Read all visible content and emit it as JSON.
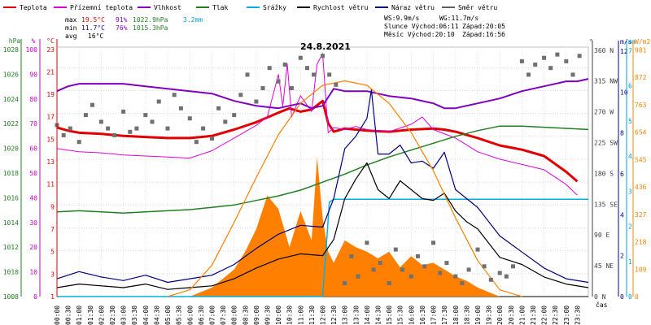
{
  "chart_data": {
    "type": "line",
    "title": "24.8.2021",
    "x_unit_label": "čas",
    "legend": [
      {
        "name": "Teplota",
        "color": "#e00000"
      },
      {
        "name": "Přízemní teplota",
        "color": "#e000e0"
      },
      {
        "name": "Vlhkost",
        "color": "#8000c0"
      },
      {
        "name": "Tlak",
        "color": "#208020"
      },
      {
        "name": "Srážky",
        "color": "#00b0e0"
      },
      {
        "name": "Rychlost větru",
        "color": "#000000"
      },
      {
        "name": "Náraz větru",
        "color": "#000080"
      },
      {
        "name": "Směr větru",
        "color": "#606060"
      }
    ],
    "stats": {
      "max_label": "max",
      "max_temp": "19.5°C",
      "max_hum": "91%",
      "max_press": "1022.9hPa",
      "rain": "3.2mm",
      "min_label": "min",
      "min_temp": "11.7°C",
      "min_hum": "76%",
      "min_press": "1015.3hPa",
      "avg_label": "avg",
      "avg_temp": "16°C"
    },
    "wind_info": {
      "ws": "WS:9.9m/s",
      "wg": "WG:11.7m/s"
    },
    "sun": {
      "rise": "Slunce Východ:06:11",
      "set": "Západ:20:05"
    },
    "moon": {
      "rise": "Měsíc Východ:20:10",
      "set": "Západ:16:56"
    },
    "axes_left": [
      {
        "unit": "hPa",
        "color": "#208020",
        "ticks": [
          "1008",
          "1010",
          "1012",
          "1014",
          "1016",
          "1018",
          "1020",
          "1022",
          "1024",
          "1026",
          "1028"
        ]
      },
      {
        "unit": "%",
        "color": "#c000c0",
        "ticks": [
          "0",
          "10",
          "20",
          "30",
          "40",
          "50",
          "60",
          "70",
          "80",
          "90",
          "100"
        ]
      },
      {
        "unit": "°C",
        "color": "#e00000",
        "ticks": [
          "1",
          "3",
          "5",
          "7",
          "9",
          "11",
          "13",
          "15",
          "17",
          "19",
          "21",
          "23"
        ]
      }
    ],
    "axes_right": [
      {
        "unit": "°",
        "color": "#404040",
        "ticks": [
          "0 N",
          "45 NE",
          "90 E",
          "135 SE",
          "180 S",
          "225 SW",
          "270 W",
          "315 NW",
          "360 N"
        ]
      },
      {
        "unit": "m/s",
        "color": "#000080",
        "ticks": [
          "0",
          "2",
          "4",
          "6",
          "8",
          "10",
          "12"
        ]
      },
      {
        "unit": "mm",
        "color": "#00a0d0",
        "ticks": [
          "0",
          "1",
          "2",
          "3",
          "4",
          "5",
          "6",
          "7"
        ]
      },
      {
        "unit": "W/m2",
        "color": "#ff8000",
        "ticks": [
          "0",
          "109",
          "218",
          "327",
          "436",
          "545",
          "654",
          "763",
          "872",
          "981"
        ]
      }
    ],
    "x_ticks": [
      "00:00",
      "00:30",
      "01:00",
      "01:30",
      "02:00",
      "02:30",
      "03:00",
      "03:30",
      "04:00",
      "04:30",
      "05:00",
      "05:30",
      "06:00",
      "06:30",
      "07:00",
      "07:30",
      "08:00",
      "08:30",
      "09:00",
      "09:30",
      "10:00",
      "10:30",
      "11:00",
      "11:30",
      "12:00",
      "12:30",
      "13:00",
      "13:30",
      "14:00",
      "14:30",
      "15:00",
      "15:30",
      "16:00",
      "16:30",
      "17:00",
      "17:30",
      "18:00",
      "18:30",
      "19:00",
      "19:30",
      "20:00",
      "20:30",
      "21:00",
      "21:30",
      "22:00",
      "22:30",
      "23:00",
      "23:30"
    ],
    "series": [
      {
        "name": "Teplota",
        "color": "#e00000",
        "unit": "°C",
        "x": [
          0,
          0.5,
          1,
          2,
          3,
          4,
          5,
          6,
          7,
          8,
          9,
          10,
          10.5,
          11,
          11.5,
          12,
          12.25,
          12.5,
          13,
          14,
          15,
          16,
          17,
          17.5,
          18,
          19,
          20,
          21,
          22,
          23,
          23.5
        ],
        "values": [
          17,
          16.7,
          16.5,
          16.4,
          16.2,
          16.1,
          16.0,
          16.0,
          16.2,
          16.8,
          17.5,
          18.4,
          18.8,
          18.5,
          18.7,
          19.5,
          17.4,
          16.6,
          16.9,
          16.7,
          16.6,
          16.8,
          16.9,
          16.8,
          16.6,
          16.0,
          15.3,
          14.9,
          14.3,
          12.8,
          11.9
        ]
      },
      {
        "name": "Přízemní teplota",
        "color": "#e000e0",
        "unit": "°C",
        "x": [
          0,
          1,
          2,
          3,
          4,
          5,
          6,
          7,
          8,
          9,
          9.5,
          10,
          10.2,
          10.4,
          10.6,
          11,
          11.5,
          11.75,
          12,
          12.25,
          12.5,
          13,
          13.5,
          14,
          15,
          16,
          16.5,
          17,
          18,
          19,
          20,
          21,
          22,
          23,
          23.5
        ],
        "values": [
          15,
          14.7,
          14.6,
          14.4,
          14.3,
          14.2,
          14.1,
          14.8,
          16,
          17.2,
          18,
          22,
          19,
          23,
          18,
          20,
          18.5,
          23,
          24,
          16.5,
          17,
          16.8,
          17.1,
          16.8,
          16.6,
          17.3,
          18,
          16.8,
          16.0,
          14.7,
          14.0,
          13.5,
          13.0,
          11.6,
          10.6
        ]
      },
      {
        "name": "Vlhkost",
        "color": "#8000c0",
        "unit": "%",
        "x": [
          0,
          0.5,
          1,
          2,
          3,
          4,
          5,
          6,
          7,
          8,
          9,
          10,
          11,
          11.5,
          12,
          12.5,
          13,
          14,
          15,
          16,
          17,
          17.5,
          18,
          19,
          20,
          21,
          22,
          23,
          23.5,
          24
        ],
        "values": [
          84,
          86,
          87,
          87,
          87,
          86,
          85,
          84,
          83,
          80,
          78,
          77,
          79,
          77,
          78,
          85,
          84,
          84,
          82,
          81,
          79,
          77,
          77,
          79,
          81,
          84,
          86,
          88,
          88,
          89
        ]
      },
      {
        "name": "Tlak",
        "color": "#208020",
        "unit": "hPa",
        "x": [
          0,
          1,
          2,
          3,
          4,
          5,
          6,
          7,
          8,
          9,
          10,
          11,
          12,
          13,
          14,
          15,
          16,
          17,
          18,
          19,
          20,
          21,
          22,
          23,
          24
        ],
        "values": [
          1015.4,
          1015.5,
          1015.4,
          1015.3,
          1015.4,
          1015.5,
          1015.6,
          1015.8,
          1016.0,
          1016.4,
          1016.8,
          1017.3,
          1018.0,
          1018.7,
          1019.5,
          1020.2,
          1020.8,
          1021.4,
          1022.0,
          1022.5,
          1022.9,
          1022.9,
          1022.8,
          1022.7,
          1022.6
        ]
      },
      {
        "name": "Srážky",
        "color": "#00b0e0",
        "unit": "mm",
        "x": [
          0,
          12,
          12.2,
          12.3,
          12.5,
          24
        ],
        "values": [
          0,
          0,
          2.0,
          3.1,
          3.2,
          3.2
        ]
      },
      {
        "name": "Rychlost větru",
        "color": "#000000",
        "unit": "m/s",
        "x": [
          0,
          1,
          2,
          3,
          4,
          5,
          6,
          7,
          8,
          9,
          10,
          11,
          12,
          12.5,
          13,
          13.5,
          14,
          14.5,
          15,
          15.5,
          16,
          16.5,
          17,
          17.5,
          18,
          18.5,
          19,
          20,
          21,
          22,
          23,
          24
        ],
        "values": [
          0.5,
          0.7,
          0.6,
          0.5,
          0.7,
          0.4,
          0.5,
          0.6,
          1.0,
          1.6,
          2.1,
          2.4,
          2.3,
          3.2,
          5.5,
          6.6,
          7.5,
          6.0,
          5.5,
          6.5,
          6.0,
          5.5,
          5.4,
          5.8,
          4.8,
          4.2,
          3.8,
          2.2,
          1.8,
          1.1,
          0.7,
          0.5
        ]
      },
      {
        "name": "Náraz větru",
        "color": "#000080",
        "unit": "m/s",
        "x": [
          0,
          1,
          2,
          3,
          4,
          5,
          6,
          7,
          8,
          9,
          10,
          11,
          12,
          12.5,
          13,
          13.5,
          14,
          14.2,
          14.5,
          15,
          15.5,
          16,
          16.5,
          17,
          17.5,
          18,
          18.5,
          19,
          20,
          21,
          22,
          23,
          24
        ],
        "values": [
          1.0,
          1.4,
          1.1,
          0.9,
          1.2,
          0.8,
          1.0,
          1.2,
          1.8,
          2.7,
          3.5,
          4.0,
          3.9,
          5.5,
          8.3,
          9.0,
          10.0,
          11.6,
          8.0,
          8.0,
          8.5,
          7.5,
          7.6,
          7.2,
          8.1,
          6.0,
          5.5,
          5.0,
          3.4,
          2.5,
          1.6,
          1.0,
          0.8
        ]
      },
      {
        "name": "Solar",
        "color": "#ff8000",
        "unit": "W/m2",
        "x": [
          5,
          6,
          7,
          8,
          9,
          10,
          11,
          12,
          13,
          14,
          15,
          16,
          17,
          18,
          19,
          20,
          21
        ],
        "values": [
          0,
          30,
          140,
          330,
          530,
          720,
          860,
          940,
          960,
          940,
          860,
          730,
          560,
          350,
          160,
          30,
          0
        ]
      }
    ],
    "solar_fill_x": [
      6,
      7,
      7.5,
      8,
      8.5,
      9,
      9.5,
      10,
      10.5,
      11,
      11.5,
      11.75,
      12,
      12.25,
      12.5,
      13,
      13.5,
      14,
      14.5,
      15,
      15.5,
      16,
      16.5,
      17,
      17.5,
      18,
      18.5,
      19,
      19.5,
      20
    ],
    "solar_fill_values": [
      0,
      40,
      80,
      120,
      200,
      300,
      450,
      390,
      220,
      380,
      250,
      620,
      350,
      200,
      150,
      250,
      220,
      200,
      170,
      200,
      130,
      180,
      140,
      150,
      120,
      90,
      70,
      40,
      20,
      0
    ],
    "direction_points_x": [
      0,
      0.3,
      0.6,
      1,
      1.3,
      1.6,
      2,
      2.3,
      2.6,
      3,
      3.3,
      3.6,
      4,
      4.3,
      4.6,
      5,
      5.3,
      5.6,
      6,
      6.3,
      6.6,
      7,
      7.3,
      7.6,
      8,
      8.3,
      8.6,
      9,
      9.3,
      9.6,
      10,
      10.3,
      10.6,
      11,
      11.3,
      11.6,
      12,
      12.3,
      12.6,
      13,
      13.3,
      13.6,
      14,
      14.3,
      14.6,
      15,
      15.3,
      15.6,
      16,
      16.3,
      16.6,
      17,
      17.3,
      17.6,
      18,
      18.3,
      18.6,
      19,
      19.3,
      19.6,
      20,
      20.3,
      20.6,
      21,
      21.3,
      21.6,
      22,
      22.3,
      22.6,
      23,
      23.3,
      23.6
    ],
    "direction_points_values": [
      255,
      240,
      250,
      230,
      270,
      285,
      260,
      250,
      240,
      275,
      245,
      250,
      270,
      260,
      290,
      250,
      300,
      280,
      265,
      230,
      250,
      235,
      280,
      260,
      270,
      300,
      330,
      290,
      310,
      340,
      320,
      345,
      310,
      355,
      340,
      330,
      358,
      330,
      315,
      20,
      60,
      30,
      80,
      40,
      50,
      20,
      70,
      40,
      30,
      60,
      45,
      80,
      35,
      50,
      30,
      20,
      40,
      70,
      45,
      25,
      35,
      30,
      45,
      350,
      330,
      345,
      355,
      340,
      360,
      350,
      330,
      358
    ]
  }
}
